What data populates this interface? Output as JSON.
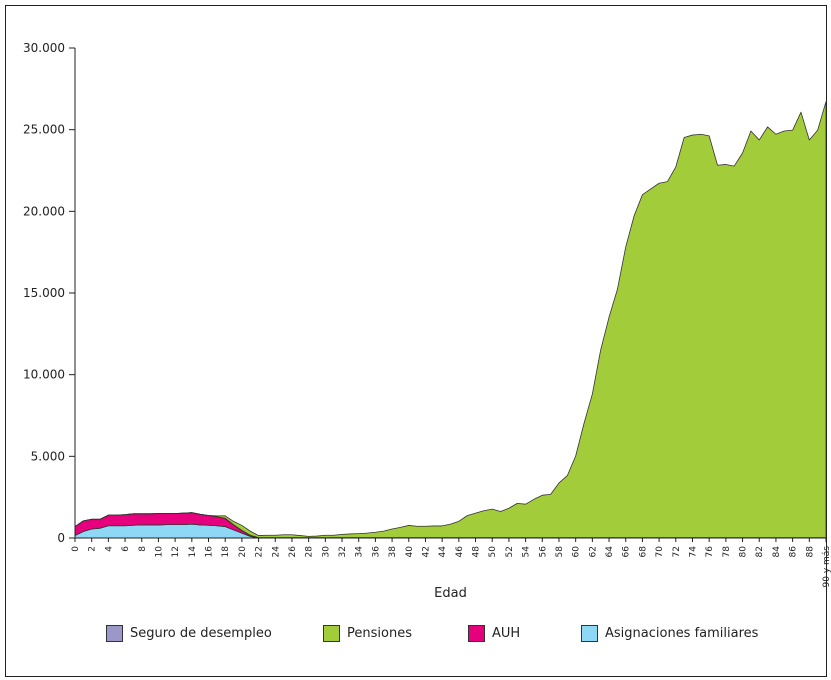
{
  "chart_data": {
    "type": "area",
    "stacked": true,
    "xlabel": "Edad",
    "ylabel": "",
    "ylim": [
      0,
      30000
    ],
    "yticks": [
      0,
      5000,
      10000,
      15000,
      20000,
      25000,
      30000
    ],
    "ytick_labels": [
      "0",
      "5.000",
      "10.000",
      "15.000",
      "20.000",
      "25.000",
      "30.000"
    ],
    "x": [
      0,
      1,
      2,
      3,
      4,
      5,
      6,
      7,
      8,
      9,
      10,
      11,
      12,
      13,
      14,
      15,
      16,
      17,
      18,
      19,
      20,
      21,
      22,
      23,
      24,
      25,
      26,
      27,
      28,
      29,
      30,
      31,
      32,
      33,
      34,
      35,
      36,
      37,
      38,
      39,
      40,
      41,
      42,
      43,
      44,
      45,
      46,
      47,
      48,
      49,
      50,
      51,
      52,
      53,
      54,
      55,
      56,
      57,
      58,
      59,
      60,
      61,
      62,
      63,
      64,
      65,
      66,
      67,
      68,
      69,
      70,
      71,
      72,
      73,
      74,
      75,
      76,
      77,
      78,
      79,
      80,
      81,
      82,
      83,
      84,
      85,
      86,
      87,
      88,
      89,
      90
    ],
    "xticks": [
      0,
      2,
      4,
      6,
      8,
      10,
      12,
      14,
      16,
      18,
      20,
      22,
      24,
      26,
      28,
      30,
      32,
      34,
      36,
      38,
      40,
      42,
      44,
      46,
      48,
      50,
      52,
      54,
      56,
      58,
      60,
      62,
      64,
      66,
      68,
      70,
      72,
      74,
      76,
      78,
      80,
      82,
      84,
      86,
      88,
      90
    ],
    "xtick_labels": [
      "0",
      "2",
      "4",
      "6",
      "8",
      "10",
      "12",
      "14",
      "16",
      "18",
      "20",
      "22",
      "24",
      "26",
      "28",
      "30",
      "32",
      "34",
      "36",
      "38",
      "40",
      "42",
      "44",
      "46",
      "48",
      "50",
      "52",
      "54",
      "56",
      "58",
      "60",
      "62",
      "64",
      "66",
      "68",
      "70",
      "72",
      "74",
      "76",
      "78",
      "80",
      "82",
      "84",
      "86",
      "88",
      "90 y más"
    ],
    "legend_position": "bottom",
    "grid": false,
    "series": [
      {
        "name": "Asignaciones familiares",
        "color": "#8fd8f5",
        "values": [
          150,
          400,
          550,
          600,
          750,
          750,
          750,
          780,
          800,
          800,
          800,
          820,
          820,
          820,
          850,
          800,
          780,
          750,
          700,
          500,
          300,
          100,
          0,
          0,
          0,
          0,
          0,
          0,
          0,
          0,
          0,
          0,
          0,
          0,
          0,
          0,
          0,
          0,
          0,
          0,
          0,
          0,
          0,
          0,
          0,
          0,
          0,
          0,
          0,
          0,
          0,
          0,
          0,
          0,
          0,
          0,
          0,
          0,
          0,
          0,
          0,
          0,
          0,
          0,
          0,
          0,
          0,
          0,
          0,
          0,
          0,
          0,
          0,
          0,
          0,
          0,
          0,
          0,
          0,
          0,
          0,
          0,
          0,
          0,
          0,
          0,
          0,
          0,
          0,
          0,
          0
        ]
      },
      {
        "name": "AUH",
        "color": "#e6007e",
        "values": [
          550,
          650,
          600,
          550,
          650,
          650,
          680,
          700,
          680,
          680,
          700,
          680,
          680,
          700,
          700,
          650,
          600,
          550,
          500,
          300,
          150,
          50,
          0,
          0,
          0,
          0,
          0,
          0,
          0,
          0,
          0,
          0,
          0,
          0,
          0,
          0,
          0,
          0,
          0,
          0,
          0,
          0,
          0,
          0,
          0,
          0,
          0,
          0,
          0,
          0,
          0,
          0,
          0,
          0,
          0,
          0,
          0,
          0,
          0,
          0,
          0,
          0,
          0,
          0,
          0,
          0,
          0,
          0,
          0,
          0,
          0,
          0,
          0,
          0,
          0,
          0,
          0,
          0,
          0,
          0,
          0,
          0,
          0,
          0,
          0,
          0,
          0,
          0,
          0,
          0,
          0
        ]
      },
      {
        "name": "Seguro de desempleo",
        "color": "#9b97c9",
        "values": [
          0,
          0,
          0,
          0,
          0,
          0,
          0,
          0,
          0,
          0,
          0,
          0,
          0,
          0,
          0,
          0,
          0,
          0,
          10,
          15,
          20,
          20,
          20,
          20,
          20,
          20,
          20,
          20,
          20,
          20,
          20,
          20,
          20,
          20,
          20,
          20,
          20,
          20,
          20,
          20,
          20,
          20,
          20,
          20,
          20,
          20,
          20,
          20,
          20,
          20,
          20,
          20,
          20,
          20,
          20,
          20,
          20,
          20,
          20,
          20,
          20,
          20,
          20,
          20,
          20,
          20,
          20,
          20,
          20,
          20,
          20,
          20,
          20,
          20,
          20,
          20,
          20,
          20,
          20,
          20,
          20,
          20,
          20,
          20,
          20,
          20,
          20,
          20,
          20,
          20,
          20
        ]
      },
      {
        "name": "Pensiones",
        "color": "#a3cc3a",
        "values": [
          0,
          0,
          0,
          0,
          0,
          0,
          0,
          0,
          0,
          0,
          0,
          0,
          0,
          0,
          0,
          0,
          0,
          50,
          150,
          200,
          300,
          250,
          130,
          150,
          150,
          180,
          180,
          130,
          80,
          100,
          150,
          150,
          200,
          230,
          250,
          280,
          330,
          400,
          530,
          630,
          750,
          700,
          700,
          720,
          720,
          830,
          1000,
          1350,
          1500,
          1650,
          1750,
          1600,
          1800,
          2100,
          2050,
          2350,
          2600,
          2650,
          3350,
          3800,
          5000,
          7000,
          8800,
          11500,
          13500,
          15200,
          17800,
          19700,
          21000,
          21350,
          21700,
          21800,
          22700,
          24500,
          24650,
          24700,
          24600,
          22800,
          22850,
          22750,
          23550,
          24900,
          24350,
          25150,
          24700,
          24900,
          24950,
          26050,
          24350,
          24950,
          26700
        ]
      }
    ]
  },
  "legend": {
    "items": [
      {
        "label": "Seguro de desempleo",
        "color": "#9b97c9"
      },
      {
        "label": "Pensiones",
        "color": "#a3cc3a"
      },
      {
        "label": "AUH",
        "color": "#e6007e"
      },
      {
        "label": "Asignaciones familiares",
        "color": "#8fd8f5"
      }
    ]
  }
}
